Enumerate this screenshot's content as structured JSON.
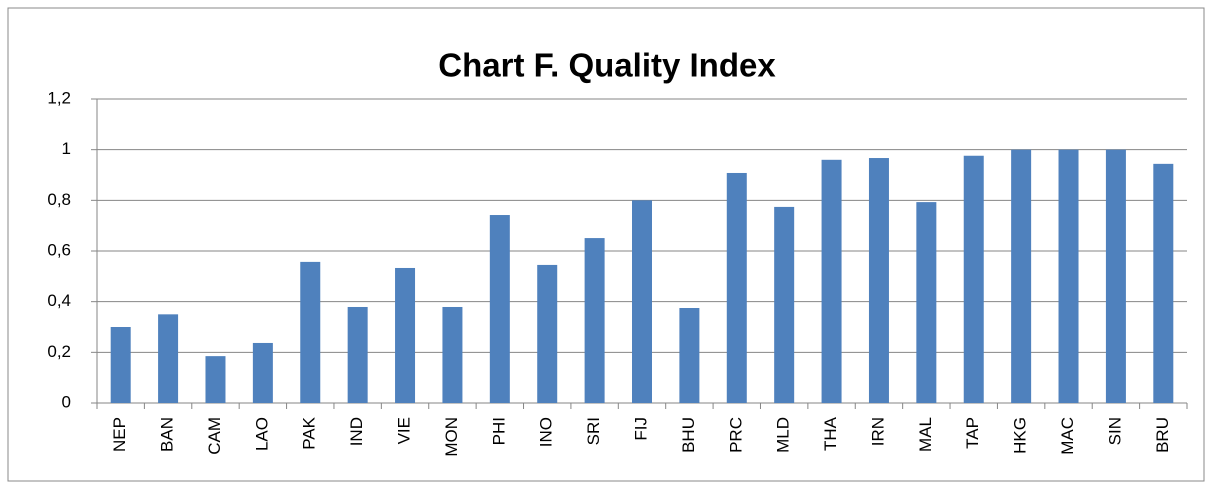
{
  "chart_data": {
    "type": "bar",
    "title": "Chart F. Quality Index",
    "categories": [
      "NEP",
      "BAN",
      "CAM",
      "LAO",
      "PAK",
      "IND",
      "VIE",
      "MON",
      "PHI",
      "INO",
      "SRI",
      "FIJ",
      "BHU",
      "PRC",
      "MLD",
      "THA",
      "IRN",
      "MAL",
      "TAP",
      "HKG",
      "MAC",
      "SIN",
      "BRU"
    ],
    "values": [
      0.3,
      0.35,
      0.185,
      0.237,
      0.557,
      0.379,
      0.533,
      0.379,
      0.742,
      0.545,
      0.651,
      0.8,
      0.375,
      0.908,
      0.774,
      0.96,
      0.967,
      0.793,
      0.976,
      1,
      1,
      1,
      0.944
    ],
    "color": "#4f81bd",
    "ylim": [
      0,
      1.2
    ],
    "yticks": [
      0,
      {
        "value": 0.2,
        "label": "0,2"
      },
      {
        "value": 0.4,
        "label": "0,4"
      },
      {
        "value": 0.6,
        "label": "0,6"
      },
      {
        "value": 0.8,
        "label": "0,8"
      },
      1,
      {
        "value": 1.2,
        "label": "1,2"
      }
    ],
    "grid": true
  }
}
